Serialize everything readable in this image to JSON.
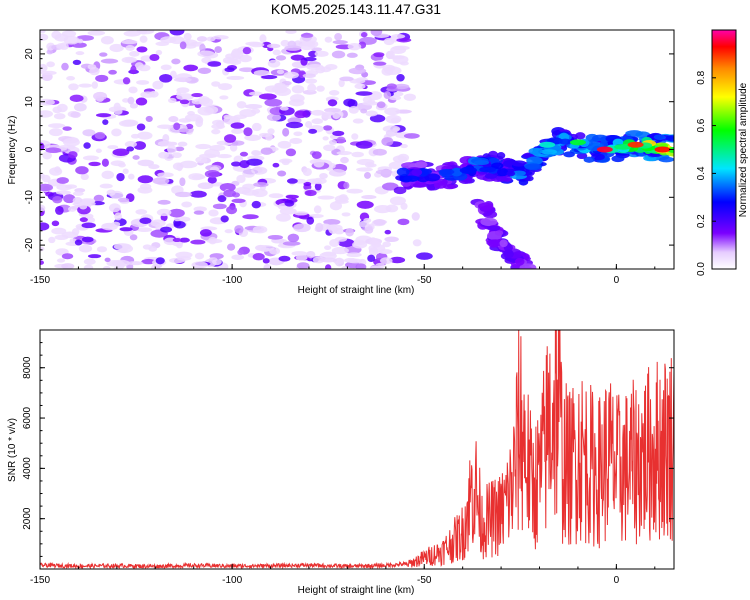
{
  "title": "KOM5.2025.143.11.47.G31",
  "chart_data": [
    {
      "type": "heatmap",
      "xlabel": "Height of straight line (km)",
      "ylabel": "Frequency (Hz)",
      "xlim": [
        -150,
        15
      ],
      "ylim": [
        -25,
        25
      ],
      "x_ticks": [
        "-150",
        "-100",
        "-50",
        "0"
      ],
      "y_ticks": [
        "20",
        "10",
        "0",
        "-10",
        "-20"
      ],
      "colorbar": {
        "label": "Normalized spectral amplitude",
        "range": [
          0,
          1
        ],
        "ticks": [
          "0.0",
          "0.2",
          "0.4",
          "0.6",
          "0.8"
        ],
        "colors": [
          "#ffffff",
          "#7a00ff",
          "#0000ff",
          "#00e5ff",
          "#00ff00",
          "#ffff00",
          "#ff8800",
          "#ff0000",
          "#ff00aa"
        ]
      },
      "features": [
        {
          "region": "background speckle",
          "x_range": [
            -150,
            -55
          ],
          "freq_range": [
            -25,
            25
          ],
          "amplitude_range": [
            0.0,
            0.2
          ]
        },
        {
          "region": "main ridge",
          "points": [
            [
              -55,
              -5
            ],
            [
              -45,
              -6
            ],
            [
              -35,
              -3
            ],
            [
              -25,
              -5
            ],
            [
              -15,
              2
            ],
            [
              -5,
              0
            ],
            [
              5,
              1
            ],
            [
              15,
              0
            ]
          ],
          "peak_amplitude": 0.95
        },
        {
          "region": "lower branch",
          "points": [
            [
              -35,
              -12
            ],
            [
              -30,
              -20
            ],
            [
              -22,
              -25
            ]
          ],
          "peak_amplitude": 0.2
        }
      ]
    },
    {
      "type": "line",
      "xlabel": "Height of straight line (km)",
      "ylabel": "SNR (10 * v/v)",
      "xlim": [
        -150,
        15
      ],
      "ylim": [
        0,
        9500
      ],
      "x_ticks": [
        "-150",
        "-100",
        "-50",
        "0"
      ],
      "y_ticks": [
        "8000",
        "6000",
        "4000",
        "2000"
      ],
      "line_color": "#e83030",
      "series": [
        {
          "x": [
            -150,
            -140,
            -130,
            -120,
            -110,
            -100,
            -90,
            -80,
            -70,
            -60,
            -55,
            -50,
            -45,
            -40,
            -37,
            -35,
            -30,
            -27,
            -25,
            -22,
            -20,
            -17,
            -15,
            -14,
            -12,
            -10,
            -7,
            -5,
            -2,
            0,
            3,
            6,
            10,
            15
          ],
          "y": [
            150,
            120,
            130,
            110,
            140,
            120,
            130,
            150,
            110,
            140,
            200,
            600,
            1000,
            2000,
            4800,
            2500,
            3000,
            4500,
            8200,
            4500,
            5000,
            8500,
            9400,
            6000,
            5500,
            6500,
            5800,
            5200,
            6200,
            5400,
            5600,
            6000,
            6500,
            7000
          ]
        }
      ]
    }
  ]
}
